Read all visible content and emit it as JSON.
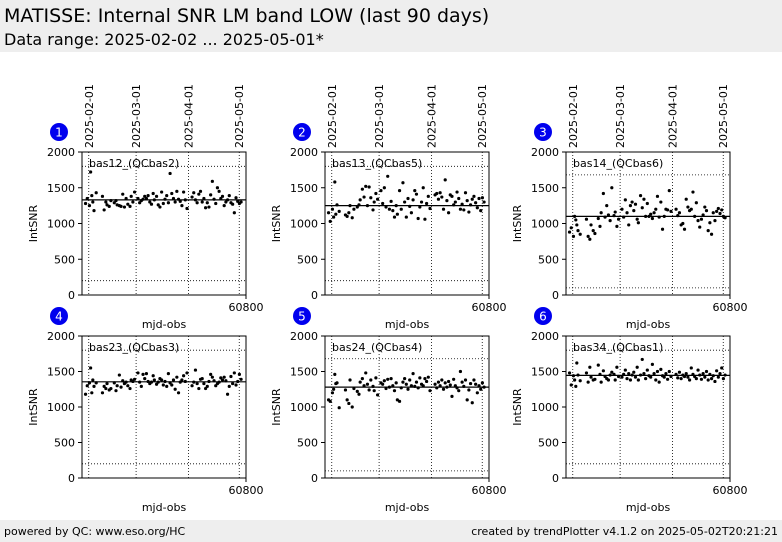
{
  "header": {
    "title": "MATISSE: Internal SNR LM band LOW (last 90 days)",
    "subtitle": "Data range: 2025-02-02 ... 2025-05-01*"
  },
  "footer": {
    "left": "powered by QC: www.eso.org/HC",
    "right": "created by trendPlotter v4.1.2 on 2025-05-02T20:21:21"
  },
  "shared_axes": {
    "date_ticks": [
      {
        "label": "2025-02-01",
        "mjd": 60707
      },
      {
        "label": "2025-03-01",
        "mjd": 60735
      },
      {
        "label": "2025-04-01",
        "mjd": 60766
      },
      {
        "label": "2025-05-01",
        "mjd": 60796
      }
    ],
    "xlabel": "mjd-obs",
    "xtick_label": "60800",
    "xtick_value": 60800,
    "xlim": [
      60703,
      60800
    ],
    "ylabel": "IntSNR",
    "ylim": [
      0,
      2000
    ],
    "yticks": [
      "0",
      "500",
      "1000",
      "1500",
      "2000"
    ],
    "marker_color": "#0000ee",
    "point_color": "#000000"
  },
  "chart_data": [
    {
      "type": "scatter",
      "number": "1",
      "label": "bas12_(QCbas2)",
      "mean": 1330,
      "upper_limit": 1800,
      "lower_limit": 200,
      "x": [
        60705.1,
        60706.1,
        60707.4,
        60708.1,
        60708.8,
        60709.4,
        60710.1,
        60711.4,
        60715.1,
        60716.1,
        60717.1,
        60717.8,
        60719.1,
        60720.1,
        60722.1,
        60723.1,
        60723.8,
        60725.1,
        60726.1,
        60727.1,
        60728.1,
        60729.1,
        60730.1,
        60731.4,
        60732.1,
        60733.1,
        60734.1,
        60736.1,
        60737.1,
        60738.1,
        60739.1,
        60740.1,
        60741.1,
        60742.1,
        60743.1,
        60744.1,
        60745.1,
        60745.8,
        60747.1,
        60748.1,
        60749.1,
        60750.1,
        60751.1,
        60752.1,
        60753.1,
        60754.1,
        60755.1,
        60756.1,
        60757.1,
        60758.1,
        60759.1,
        60760.1,
        60761.1,
        60762.1,
        60763.1,
        60764.1,
        60765.1,
        60768.1,
        60769.1,
        60770.1,
        60771.1,
        60772.1,
        60773.1,
        60774.1,
        60775.1,
        60776.1,
        60777.1,
        60778.1,
        60779.1,
        60780.1,
        60781.1,
        60782.1,
        60783.1,
        60784.1,
        60785.1,
        60786.1,
        60787.1,
        60788.1,
        60789.1,
        60790.1,
        60791.1,
        60792.1,
        60793.1,
        60794.1,
        60795.1,
        60796.1,
        60797.1
      ],
      "y": [
        1280,
        1350,
        1250,
        1720,
        1390,
        1300,
        1180,
        1430,
        1380,
        1190,
        1300,
        1260,
        1240,
        1320,
        1290,
        1320,
        1260,
        1250,
        1240,
        1410,
        1230,
        1350,
        1270,
        1240,
        1380,
        1300,
        1440,
        1350,
        1290,
        1320,
        1340,
        1380,
        1350,
        1390,
        1300,
        1270,
        1420,
        1330,
        1380,
        1260,
        1230,
        1440,
        1280,
        1340,
        1390,
        1290,
        1700,
        1420,
        1350,
        1300,
        1450,
        1340,
        1310,
        1250,
        1440,
        1330,
        1210,
        1370,
        1430,
        1330,
        1290,
        1410,
        1450,
        1300,
        1350,
        1220,
        1290,
        1230,
        1400,
        1590,
        1340,
        1280,
        1500,
        1450,
        1350,
        1380,
        1250,
        1300,
        1330,
        1390,
        1290,
        1270,
        1150,
        1360,
        1310,
        1280,
        1300
      ]
    },
    {
      "type": "scatter",
      "number": "2",
      "label": "bas13_(QCbas5)",
      "mean": 1250,
      "upper_limit": 1800,
      "lower_limit": 200,
      "x": [
        60705.1,
        60706.1,
        60707.4,
        60708.1,
        60708.8,
        60709.4,
        60710.1,
        60711.4,
        60715.1,
        60716.1,
        60717.1,
        60717.8,
        60719.1,
        60720.1,
        60722.1,
        60723.1,
        60723.8,
        60725.1,
        60726.1,
        60727.1,
        60728.1,
        60729.1,
        60730.1,
        60731.4,
        60732.1,
        60733.1,
        60734.1,
        60736.1,
        60737.1,
        60738.1,
        60739.1,
        60740.1,
        60741.1,
        60742.1,
        60743.1,
        60744.1,
        60745.1,
        60745.8,
        60747.1,
        60748.1,
        60749.1,
        60750.1,
        60751.1,
        60752.1,
        60753.1,
        60754.1,
        60755.1,
        60756.1,
        60757.1,
        60758.1,
        60759.1,
        60760.1,
        60761.1,
        60762.1,
        60763.1,
        60764.1,
        60765.1,
        60768.1,
        60769.1,
        60770.1,
        60771.1,
        60772.1,
        60773.1,
        60774.1,
        60775.1,
        60776.1,
        60777.1,
        60778.1,
        60779.1,
        60780.1,
        60781.1,
        60782.1,
        60783.1,
        60784.1,
        60785.1,
        60786.1,
        60787.1,
        60788.1,
        60789.1,
        60790.1,
        60791.1,
        60792.1,
        60793.1,
        60794.1,
        60795.1,
        60796.1,
        60797.1
      ],
      "y": [
        1150,
        1030,
        1200,
        1090,
        1580,
        1130,
        1260,
        1170,
        1120,
        1100,
        1150,
        1250,
        1080,
        1200,
        1230,
        1260,
        1330,
        1480,
        1370,
        1520,
        1250,
        1510,
        1360,
        1190,
        1300,
        1420,
        1340,
        1460,
        1280,
        1500,
        1230,
        1660,
        1200,
        1310,
        1180,
        1090,
        1250,
        1130,
        1460,
        1200,
        1570,
        1300,
        1090,
        1350,
        1240,
        1150,
        1330,
        1460,
        1410,
        1070,
        1230,
        1300,
        1500,
        1060,
        1280,
        1380,
        1210,
        1400,
        1420,
        1340,
        1430,
        1370,
        1200,
        1610,
        1320,
        1150,
        1400,
        1380,
        1260,
        1300,
        1440,
        1350,
        1200,
        1270,
        1190,
        1430,
        1320,
        1160,
        1260,
        1340,
        1380,
        1290,
        1220,
        1350,
        1180,
        1360,
        1300
      ]
    },
    {
      "type": "scatter",
      "number": "3",
      "label": "bas14_(QCbas6)",
      "mean": 1100,
      "upper_limit": 1680,
      "lower_limit": 100,
      "x": [
        60705.1,
        60706.1,
        60707.4,
        60708.1,
        60708.8,
        60709.4,
        60710.1,
        60711.4,
        60715.1,
        60716.1,
        60717.1,
        60717.8,
        60719.1,
        60720.1,
        60722.1,
        60723.1,
        60723.8,
        60725.1,
        60726.1,
        60727.1,
        60728.1,
        60729.1,
        60730.1,
        60731.4,
        60732.1,
        60733.1,
        60734.1,
        60736.1,
        60737.1,
        60738.1,
        60739.1,
        60740.1,
        60741.1,
        60742.1,
        60743.1,
        60744.1,
        60745.1,
        60745.8,
        60747.1,
        60748.1,
        60749.1,
        60750.1,
        60751.1,
        60752.1,
        60753.1,
        60754.1,
        60755.1,
        60756.1,
        60757.1,
        60758.1,
        60759.1,
        60760.1,
        60761.1,
        60762.1,
        60763.1,
        60764.1,
        60765.1,
        60768.1,
        60769.1,
        60770.1,
        60771.1,
        60772.1,
        60773.1,
        60774.1,
        60775.1,
        60776.1,
        60777.1,
        60778.1,
        60779.1,
        60780.1,
        60781.1,
        60782.1,
        60783.1,
        60784.1,
        60785.1,
        60786.1,
        60787.1,
        60788.1,
        60789.1,
        60790.1,
        60791.1,
        60792.1,
        60793.1,
        60794.1,
        60795.1,
        60796.1,
        60797.1
      ],
      "y": [
        880,
        940,
        820,
        1100,
        1050,
        980,
        900,
        850,
        1060,
        820,
        780,
        980,
        900,
        860,
        1070,
        960,
        1150,
        1420,
        1090,
        1250,
        1120,
        1040,
        1500,
        1110,
        1160,
        960,
        1060,
        1200,
        1090,
        1330,
        1150,
        980,
        1250,
        1300,
        1180,
        1270,
        1060,
        1010,
        1390,
        1220,
        1340,
        1100,
        1280,
        1100,
        1130,
        1070,
        1150,
        1200,
        1380,
        1090,
        1300,
        920,
        1100,
        1200,
        1190,
        1460,
        1170,
        1200,
        1110,
        1150,
        980,
        1000,
        920,
        1340,
        1230,
        1180,
        1200,
        1440,
        1100,
        1290,
        1040,
        950,
        1060,
        1120,
        1230,
        1180,
        900,
        1010,
        850,
        1150,
        1040,
        1170,
        1210,
        1140,
        1190,
        1100,
        1080
      ]
    },
    {
      "type": "scatter",
      "number": "4",
      "label": "bas23_(QCbas3)",
      "mean": 1355,
      "upper_limit": 1800,
      "lower_limit": 200,
      "x": [
        60705.1,
        60706.1,
        60707.4,
        60708.1,
        60708.8,
        60709.4,
        60710.1,
        60711.4,
        60715.1,
        60716.1,
        60717.1,
        60717.8,
        60719.1,
        60720.1,
        60722.1,
        60723.1,
        60723.8,
        60725.1,
        60726.1,
        60727.1,
        60728.1,
        60729.1,
        60730.1,
        60731.4,
        60732.1,
        60733.1,
        60734.1,
        60736.1,
        60737.1,
        60738.1,
        60739.1,
        60740.1,
        60741.1,
        60742.1,
        60743.1,
        60744.1,
        60745.1,
        60745.8,
        60747.1,
        60748.1,
        60749.1,
        60750.1,
        60751.1,
        60752.1,
        60753.1,
        60754.1,
        60755.1,
        60756.1,
        60757.1,
        60758.1,
        60759.1,
        60760.1,
        60761.1,
        60762.1,
        60763.1,
        60764.1,
        60765.1,
        60768.1,
        60769.1,
        60770.1,
        60771.1,
        60772.1,
        60773.1,
        60774.1,
        60775.1,
        60776.1,
        60777.1,
        60778.1,
        60779.1,
        60780.1,
        60781.1,
        60782.1,
        60783.1,
        60784.1,
        60785.1,
        60786.1,
        60787.1,
        60788.1,
        60789.1,
        60790.1,
        60791.1,
        60792.1,
        60793.1,
        60794.1,
        60795.1,
        60796.1,
        60797.1
      ],
      "y": [
        1180,
        1300,
        1340,
        1550,
        1200,
        1380,
        1290,
        1340,
        1200,
        1290,
        1260,
        1330,
        1240,
        1260,
        1340,
        1230,
        1300,
        1450,
        1280,
        1370,
        1330,
        1350,
        1300,
        1260,
        1380,
        1360,
        1390,
        1480,
        1350,
        1290,
        1460,
        1400,
        1470,
        1360,
        1330,
        1350,
        1440,
        1380,
        1320,
        1350,
        1400,
        1380,
        1310,
        1360,
        1290,
        1470,
        1340,
        1310,
        1380,
        1250,
        1420,
        1200,
        1350,
        1380,
        1440,
        1360,
        1480,
        1300,
        1350,
        1520,
        1330,
        1260,
        1390,
        1400,
        1330,
        1260,
        1290,
        1360,
        1460,
        1420,
        1370,
        1300,
        1330,
        1350,
        1410,
        1380,
        1420,
        1370,
        1180,
        1290,
        1430,
        1330,
        1480,
        1310,
        1360,
        1460,
        1390
      ]
    },
    {
      "type": "scatter",
      "number": "5",
      "label": "bas24_(QCbas4)",
      "mean": 1280,
      "upper_limit": 1680,
      "lower_limit": 100,
      "x": [
        60705.1,
        60706.1,
        60707.4,
        60708.1,
        60708.8,
        60709.4,
        60710.1,
        60711.4,
        60715.1,
        60716.1,
        60717.1,
        60717.8,
        60719.1,
        60720.1,
        60722.1,
        60723.1,
        60723.8,
        60725.1,
        60726.1,
        60727.1,
        60728.1,
        60729.1,
        60730.1,
        60731.4,
        60732.1,
        60733.1,
        60734.1,
        60736.1,
        60737.1,
        60738.1,
        60739.1,
        60740.1,
        60741.1,
        60742.1,
        60743.1,
        60744.1,
        60745.1,
        60745.8,
        60747.1,
        60748.1,
        60749.1,
        60750.1,
        60751.1,
        60752.1,
        60753.1,
        60754.1,
        60755.1,
        60756.1,
        60757.1,
        60758.1,
        60759.1,
        60760.1,
        60761.1,
        60762.1,
        60763.1,
        60764.1,
        60765.1,
        60768.1,
        60769.1,
        60770.1,
        60771.1,
        60772.1,
        60773.1,
        60774.1,
        60775.1,
        60776.1,
        60777.1,
        60778.1,
        60779.1,
        60780.1,
        60781.1,
        60782.1,
        60783.1,
        60784.1,
        60785.1,
        60786.1,
        60787.1,
        60788.1,
        60789.1,
        60790.1,
        60791.1,
        60792.1,
        60793.1,
        60794.1,
        60795.1,
        60796.1,
        60797.1
      ],
      "y": [
        1100,
        1080,
        1200,
        1250,
        1460,
        1330,
        1340,
        990,
        1240,
        1100,
        1050,
        1380,
        1000,
        1260,
        1220,
        1180,
        1350,
        1400,
        1300,
        1480,
        1320,
        1240,
        1380,
        1290,
        1230,
        1410,
        1170,
        1340,
        1320,
        1370,
        1260,
        1390,
        1280,
        1400,
        1300,
        1230,
        1340,
        1100,
        1080,
        1270,
        1350,
        1400,
        1320,
        1250,
        1380,
        1300,
        1470,
        1290,
        1350,
        1270,
        1410,
        1320,
        1300,
        1400,
        1360,
        1420,
        1230,
        1320,
        1270,
        1350,
        1300,
        1380,
        1250,
        1340,
        1280,
        1360,
        1310,
        1150,
        1390,
        1300,
        1270,
        1230,
        1500,
        1350,
        1290,
        1380,
        1100,
        1240,
        1330,
        1060,
        1380,
        1320,
        1200,
        1300,
        1250,
        1340,
        1280
      ]
    },
    {
      "type": "scatter",
      "number": "6",
      "label": "bas34_(QCbas1)",
      "mean": 1445,
      "upper_limit": 1800,
      "lower_limit": 200,
      "x": [
        60705.1,
        60706.1,
        60707.4,
        60708.1,
        60708.8,
        60709.4,
        60710.1,
        60711.4,
        60715.1,
        60716.1,
        60717.1,
        60717.8,
        60719.1,
        60720.1,
        60722.1,
        60723.1,
        60723.8,
        60725.1,
        60726.1,
        60727.1,
        60728.1,
        60729.1,
        60730.1,
        60731.4,
        60732.1,
        60733.1,
        60734.1,
        60736.1,
        60737.1,
        60738.1,
        60739.1,
        60740.1,
        60741.1,
        60742.1,
        60743.1,
        60744.1,
        60745.1,
        60745.8,
        60747.1,
        60748.1,
        60749.1,
        60750.1,
        60751.1,
        60752.1,
        60753.1,
        60754.1,
        60755.1,
        60756.1,
        60757.1,
        60758.1,
        60759.1,
        60760.1,
        60761.1,
        60762.1,
        60763.1,
        60764.1,
        60765.1,
        60768.1,
        60769.1,
        60770.1,
        60771.1,
        60772.1,
        60773.1,
        60774.1,
        60775.1,
        60776.1,
        60777.1,
        60778.1,
        60779.1,
        60780.1,
        60781.1,
        60782.1,
        60783.1,
        60784.1,
        60785.1,
        60786.1,
        60787.1,
        60788.1,
        60789.1,
        60790.1,
        60791.1,
        60792.1,
        60793.1,
        60794.1,
        60795.1,
        60796.1,
        60797.1
      ],
      "y": [
        1480,
        1310,
        1440,
        1380,
        1290,
        1620,
        1450,
        1370,
        1480,
        1350,
        1560,
        1420,
        1380,
        1390,
        1590,
        1460,
        1350,
        1510,
        1430,
        1400,
        1380,
        1450,
        1490,
        1460,
        1380,
        1560,
        1430,
        1420,
        1460,
        1520,
        1400,
        1470,
        1380,
        1450,
        1490,
        1420,
        1560,
        1380,
        1450,
        1670,
        1470,
        1400,
        1520,
        1440,
        1420,
        1600,
        1470,
        1380,
        1500,
        1350,
        1530,
        1440,
        1420,
        1470,
        1390,
        1500,
        1430,
        1460,
        1410,
        1490,
        1400,
        1450,
        1430,
        1470,
        1420,
        1380,
        1550,
        1460,
        1430,
        1400,
        1520,
        1450,
        1390,
        1470,
        1420,
        1500,
        1380,
        1460,
        1400,
        1440,
        1360,
        1510,
        1420,
        1470,
        1550,
        1400,
        1450
      ]
    }
  ]
}
